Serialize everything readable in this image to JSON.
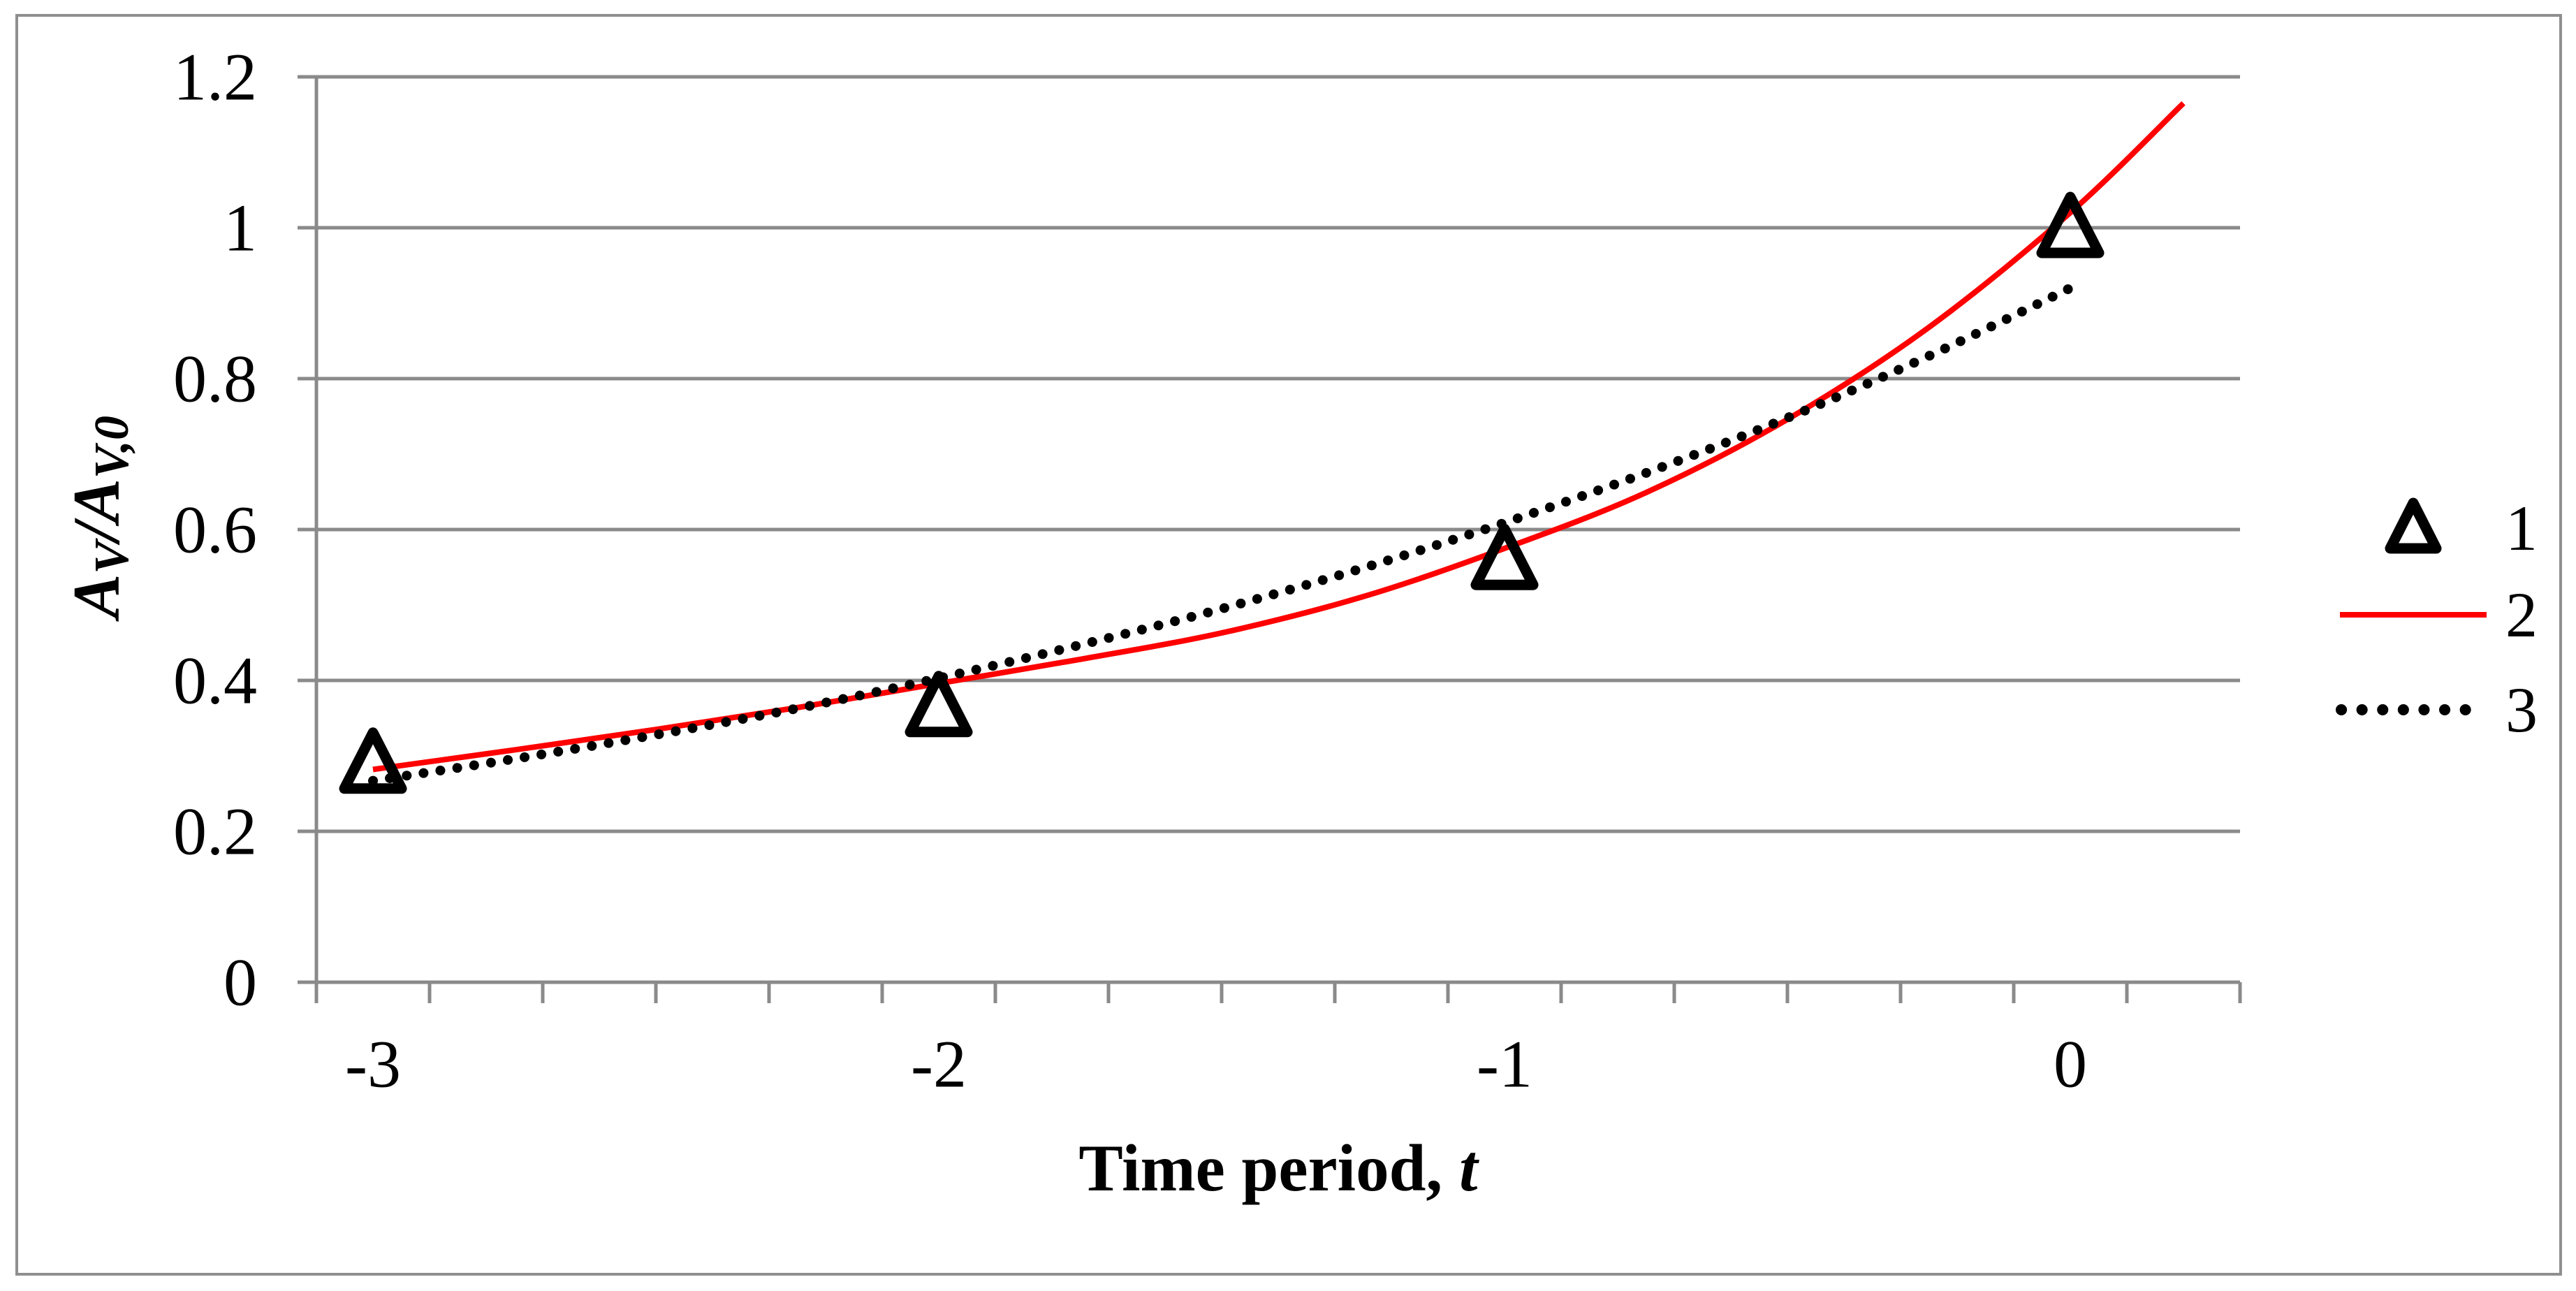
{
  "chart_data": {
    "type": "scatter+line",
    "title": "",
    "x_axis": {
      "title": "Time period, t",
      "title_prefix": "Time period,",
      "title_italic": "t",
      "min": -3.1,
      "max": 0.3,
      "tick_step": 0.2,
      "tick_label_values": [
        -3,
        -2,
        -1,
        0
      ],
      "tick_labels": [
        "-3",
        "-2",
        "-1",
        "0"
      ]
    },
    "y_axis": {
      "title": "A_V/A_V,0",
      "title_rich": {
        "base1": "A",
        "sub1": "V",
        "base2": "/A",
        "sub2": "V,0"
      },
      "min": 0,
      "max": 1.2,
      "tick_step": 0.2,
      "tick_values": [
        0,
        0.2,
        0.4,
        0.6,
        0.8,
        1,
        1.2
      ],
      "tick_labels": [
        "0",
        "0.2",
        "0.4",
        "0.6",
        "0.8",
        "1",
        "1.2"
      ]
    },
    "grid": "horizontal-only",
    "legend_position": "right",
    "colors": {
      "marker": "#000000",
      "model_line": "#ff0000",
      "trend_line": "#000000",
      "gridline": "#8a8a8a",
      "axis": "#8a8a8a",
      "figure_border": "#8f8f8f"
    },
    "series": [
      {
        "name": "1",
        "type": "scatter",
        "marker": "open-triangle",
        "color": "#000000",
        "points": [
          [
            -3,
            0.29
          ],
          [
            -2,
            0.365
          ],
          [
            -1,
            0.56
          ],
          [
            0,
            1.0
          ]
        ]
      },
      {
        "name": "2",
        "type": "line",
        "style": "solid",
        "color": "#ff0000",
        "points": [
          [
            -3,
            0.282
          ],
          [
            -2.75,
            0.308
          ],
          [
            -2.5,
            0.335
          ],
          [
            -2.25,
            0.364
          ],
          [
            -2,
            0.396
          ],
          [
            -1.75,
            0.428
          ],
          [
            -1.5,
            0.463
          ],
          [
            -1.25,
            0.511
          ],
          [
            -1,
            0.575
          ],
          [
            -0.75,
            0.649
          ],
          [
            -0.5,
            0.746
          ],
          [
            -0.25,
            0.868
          ],
          [
            0,
            1.02
          ],
          [
            0.2,
            1.165
          ]
        ]
      },
      {
        "name": "3",
        "type": "line",
        "style": "dotted",
        "color": "#000000",
        "points": [
          [
            -3,
            0.267
          ],
          [
            -2.75,
            0.296
          ],
          [
            -2.5,
            0.328
          ],
          [
            -2.25,
            0.363
          ],
          [
            -2,
            0.403
          ],
          [
            -1.75,
            0.447
          ],
          [
            -1.5,
            0.495
          ],
          [
            -1.25,
            0.549
          ],
          [
            -1,
            0.609
          ],
          [
            -0.75,
            0.675
          ],
          [
            -0.5,
            0.748
          ],
          [
            -0.25,
            0.83
          ],
          [
            0,
            0.92
          ]
        ]
      }
    ]
  }
}
